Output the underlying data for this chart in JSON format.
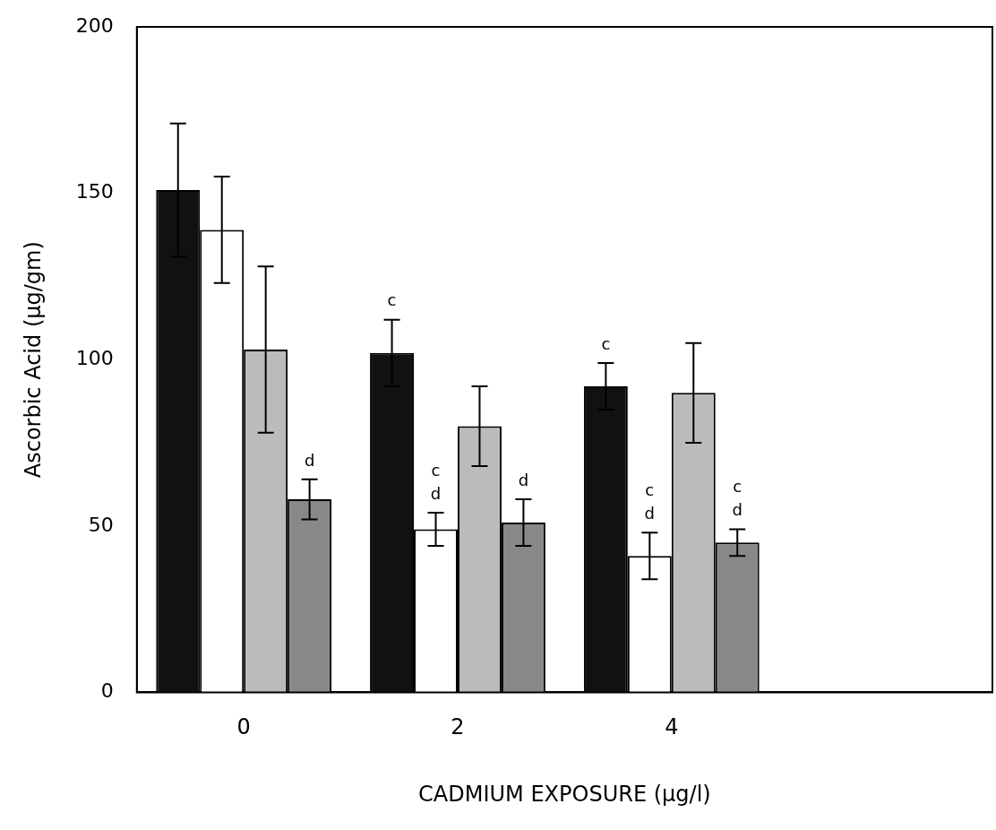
{
  "chart_data": {
    "type": "bar",
    "xlabel": "CADMIUM EXPOSURE (μg/l)",
    "ylabel": "Ascorbic Acid (μg/gm)",
    "categories": [
      "0",
      "2",
      "4",
      null
    ],
    "series": [
      {
        "color": "#111111",
        "values": [
          151,
          102,
          92,
          null
        ],
        "errors": [
          20,
          10,
          7,
          null
        ]
      },
      {
        "color": "#ffffff",
        "values": [
          139,
          49,
          41,
          null
        ],
        "errors": [
          16,
          5,
          7,
          null
        ]
      },
      {
        "color": "#bbbbbb",
        "values": [
          103,
          80,
          90,
          null
        ],
        "errors": [
          25,
          12,
          15,
          null
        ]
      },
      {
        "color": "#888888",
        "values": [
          58,
          51,
          45,
          null
        ],
        "errors": [
          6,
          7,
          4,
          null
        ]
      }
    ],
    "ylim": [
      0,
      200
    ],
    "yticks": [
      0,
      50,
      100,
      150,
      200
    ],
    "grid": false,
    "legend": false,
    "annotations": [
      "d",
      "c",
      "c",
      "d",
      "d",
      "c",
      "c",
      "d",
      "c",
      "d"
    ]
  }
}
